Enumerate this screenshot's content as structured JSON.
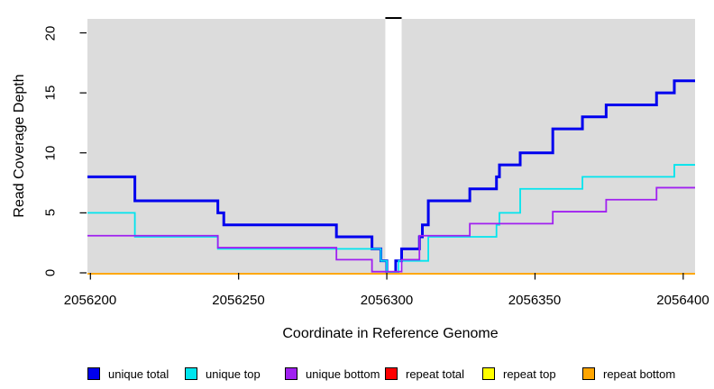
{
  "chart_data": {
    "type": "line",
    "subtype": "step-post",
    "title": "",
    "xlabel": "Coordinate in Reference Genome",
    "ylabel": "Read Coverage Depth",
    "xlim": [
      2056199,
      2056404
    ],
    "ylim": [
      0,
      20
    ],
    "grid": false,
    "panel_bg": "#DCDCDC",
    "tick_color": "#000000",
    "x_ticks": [
      2056200,
      2056250,
      2056300,
      2056350,
      2056400
    ],
    "x_tick_labels": [
      "2056200",
      "2056250",
      "2056300",
      "2056350",
      "2056400"
    ],
    "y_ticks": [
      0,
      5,
      10,
      15,
      20
    ],
    "y_tick_labels": [
      "0",
      "5",
      "10",
      "15",
      "20"
    ],
    "gap_region": {
      "from": 2056299.5,
      "to": 2056305,
      "fill": "#FFFFFF",
      "top_marker_color": "#000000"
    },
    "series": [
      {
        "name": "unique total",
        "color": "#0000EE",
        "line_width": 3,
        "dy": 0,
        "points": [
          [
            2056199,
            8
          ],
          [
            2056215,
            6
          ],
          [
            2056243,
            5
          ],
          [
            2056245,
            4
          ],
          [
            2056283,
            3
          ],
          [
            2056295,
            2
          ],
          [
            2056298,
            1
          ],
          [
            2056300,
            0
          ],
          [
            2056303,
            1
          ],
          [
            2056305,
            2
          ],
          [
            2056311,
            3
          ],
          [
            2056312,
            4
          ],
          [
            2056314,
            6
          ],
          [
            2056328,
            7
          ],
          [
            2056337,
            8
          ],
          [
            2056338,
            9
          ],
          [
            2056345,
            10
          ],
          [
            2056356,
            12
          ],
          [
            2056366,
            13
          ],
          [
            2056374,
            14
          ],
          [
            2056391,
            15
          ],
          [
            2056397,
            16
          ],
          [
            2056404,
            16
          ]
        ]
      },
      {
        "name": "unique top",
        "color": "#00E5EE",
        "line_width": 1.8,
        "dy": 0,
        "points": [
          [
            2056199,
            5
          ],
          [
            2056215,
            3
          ],
          [
            2056243,
            2
          ],
          [
            2056298,
            1
          ],
          [
            2056300,
            0
          ],
          [
            2056304,
            1
          ],
          [
            2056314,
            3
          ],
          [
            2056337,
            4
          ],
          [
            2056338,
            5
          ],
          [
            2056345,
            7
          ],
          [
            2056366,
            8
          ],
          [
            2056397,
            9
          ],
          [
            2056404,
            9
          ]
        ]
      },
      {
        "name": "unique bottom",
        "color": "#A020F0",
        "line_width": 1.8,
        "dy": -1.3,
        "points": [
          [
            2056199,
            3
          ],
          [
            2056243,
            2
          ],
          [
            2056283,
            1
          ],
          [
            2056295,
            0
          ],
          [
            2056305,
            1
          ],
          [
            2056311,
            3
          ],
          [
            2056328,
            4
          ],
          [
            2056356,
            5
          ],
          [
            2056374,
            6
          ],
          [
            2056391,
            7
          ],
          [
            2056404,
            7
          ]
        ]
      },
      {
        "name": "repeat total",
        "color": "#FF0000",
        "line_width": 1.8,
        "dy": 0.9,
        "points": [
          [
            2056199,
            0
          ],
          [
            2056404,
            0
          ]
        ]
      },
      {
        "name": "repeat top",
        "color": "#FFFF00",
        "line_width": 1.8,
        "dy": 0.9,
        "points": [
          [
            2056199,
            0
          ],
          [
            2056404,
            0
          ]
        ]
      },
      {
        "name": "repeat bottom",
        "color": "#FFA500",
        "line_width": 1.8,
        "dy": 0.9,
        "points": [
          [
            2056199,
            0
          ],
          [
            2056404,
            0
          ]
        ]
      }
    ]
  },
  "legend": {
    "items": [
      {
        "label": "unique total",
        "color": "#0000EE"
      },
      {
        "label": "unique top",
        "color": "#00E5EE"
      },
      {
        "label": "unique bottom",
        "color": "#A020F0"
      },
      {
        "label": "repeat total",
        "color": "#FF0000"
      },
      {
        "label": "repeat top",
        "color": "#FFFF00"
      },
      {
        "label": "repeat bottom",
        "color": "#FFA500"
      }
    ]
  }
}
